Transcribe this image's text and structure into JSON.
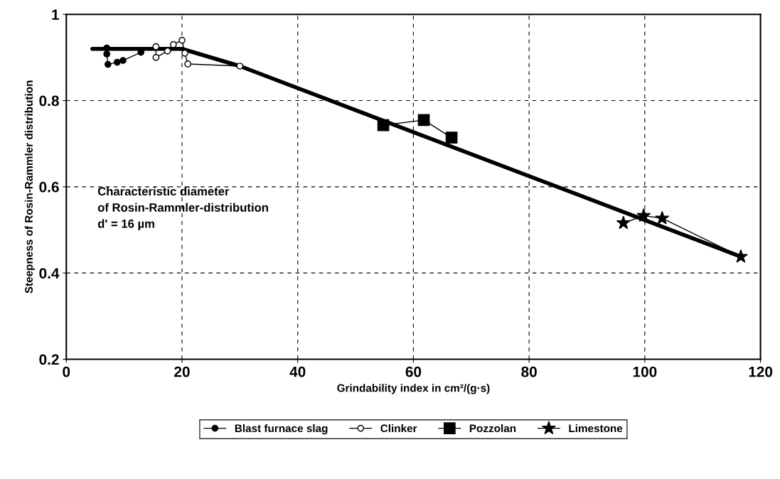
{
  "chart_data": {
    "type": "line",
    "xlabel": "Grindability index in cm²/(g·s)",
    "ylabel": "Steepness of Rosin-Rammler distribution",
    "xlim": [
      0,
      120
    ],
    "xticks": [
      0,
      20,
      40,
      60,
      80,
      100,
      120
    ],
    "ylim": [
      0.2,
      1
    ],
    "yticks": [
      0.2,
      0.4,
      0.6,
      0.8,
      1
    ],
    "grid": true,
    "legend": "bottom",
    "annotations": [
      "Characteristic diameter\nof Rosin-Rammler-distribution\nd' = 16 µm"
    ],
    "series": [
      {
        "name": "Blast furnace slag",
        "color": "#000000",
        "marker": "circle",
        "x": [
          7,
          7,
          7.2,
          8.8,
          9.8,
          12.9
        ],
        "values": [
          0.922,
          0.908,
          0.884,
          0.889,
          0.893,
          0.912
        ]
      },
      {
        "name": "Clinker",
        "color": "#000000",
        "marker": "open circle",
        "x": [
          15.5,
          15.5,
          17.5,
          18.5,
          20,
          20.5,
          21,
          30
        ],
        "values": [
          0.925,
          0.9,
          0.915,
          0.93,
          0.94,
          0.91,
          0.885,
          0.88
        ]
      },
      {
        "name": "Pozzolan",
        "color": "#000000",
        "marker": "square",
        "x": [
          54.8,
          61.8,
          66.6
        ],
        "values": [
          0.743,
          0.755,
          0.714
        ]
      },
      {
        "name": "Limestone",
        "color": "#000000",
        "marker": "star",
        "x": [
          96.3,
          99.8,
          103,
          116.6
        ],
        "values": [
          0.516,
          0.533,
          0.527,
          0.438
        ]
      },
      {
        "color": "#000000",
        "marker": "none",
        "x": [
          4.5,
          20,
          30,
          116.6
        ],
        "values": [
          0.92,
          0.92,
          0.88,
          0.438
        ]
      }
    ]
  }
}
